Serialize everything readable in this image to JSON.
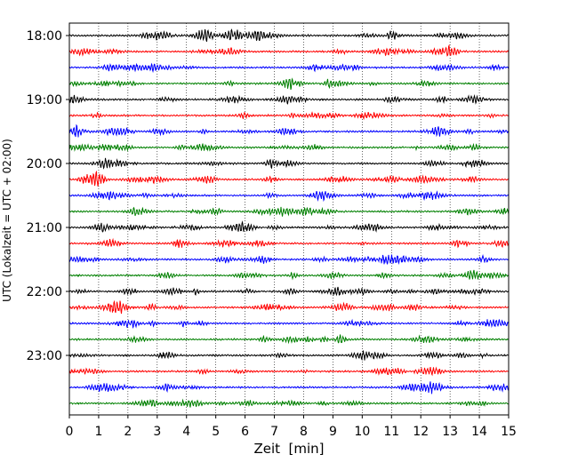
{
  "chart_data": {
    "type": "line",
    "title": "",
    "xlabel": "Zeit  [min]",
    "ylabel": "UTC (Lokalzeit = UTC + 02:00)",
    "xlim": [
      0,
      15
    ],
    "x_ticks": [
      "0",
      "1",
      "2",
      "3",
      "4",
      "5",
      "6",
      "7",
      "8",
      "9",
      "10",
      "11",
      "12",
      "13",
      "14",
      "15"
    ],
    "y_ticks": [
      "18:00",
      "19:00",
      "20:00",
      "21:00",
      "22:00",
      "23:00"
    ],
    "trace_interval_min": 15,
    "trace_start": "18:00",
    "trace_count": 24,
    "trace_colors": [
      "#000000",
      "#ff0000",
      "#0000ff",
      "#008000"
    ],
    "vertical_gridlines": "dotted, every minute",
    "legend": "none"
  }
}
